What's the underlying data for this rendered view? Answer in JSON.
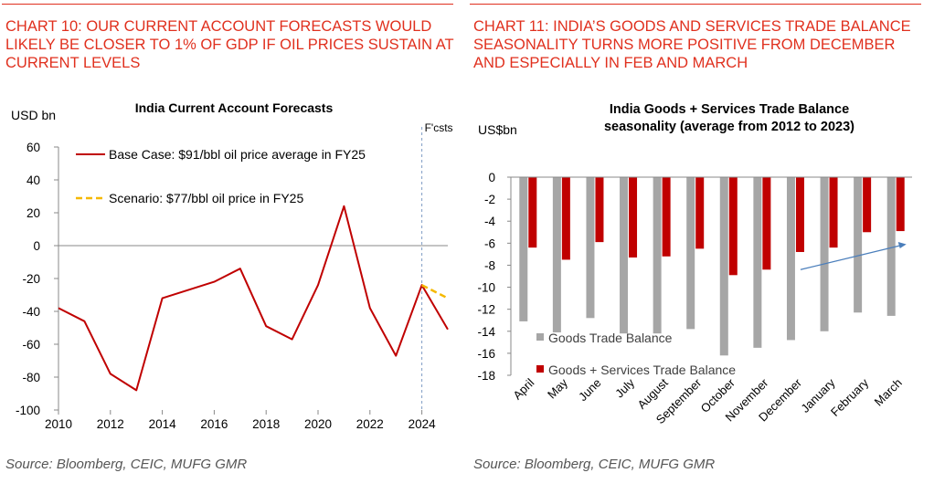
{
  "left": {
    "heading": "CHART 10: OUR CURRENT ACCOUNT FORECASTS WOULD LIKELY BE CLOSER TO 1% OF GDP IF OIL PRICES SUSTAIN AT CURRENT LEVELS",
    "source": "Source: Bloomberg, CEIC, MUFG GMR"
  },
  "right": {
    "heading": "CHART 11: INDIA’S GOODS AND SERVICES TRADE BALANCE SEASONALITY TURNS MORE POSITIVE FROM DECEMBER AND ESPECIALLY IN FEB AND MARCH",
    "source": "Source: Bloomberg, CEIC, MUFG GMR"
  },
  "chart_data": [
    {
      "type": "line",
      "title": "India Current Account Forecasts",
      "ylabel": "USD bn",
      "xlabel": "",
      "ylim": [
        -100,
        60
      ],
      "yticks": [
        60,
        40,
        20,
        0,
        -20,
        -40,
        -60,
        -80,
        -100
      ],
      "xlim": [
        2010,
        2025
      ],
      "xticks": [
        2010,
        2012,
        2014,
        2016,
        2018,
        2020,
        2022,
        2024
      ],
      "forecast_marker": {
        "x": 2024,
        "label": "F'csts"
      },
      "legend_position": "top-left",
      "series": [
        {
          "name": "Base Case: $91/bbl oil price average in FY25",
          "color": "#c00000",
          "style": "solid",
          "x": [
            2010,
            2011,
            2012,
            2013,
            2014,
            2015,
            2016,
            2017,
            2018,
            2019,
            2020,
            2021,
            2022,
            2023,
            2024,
            2025
          ],
          "y": [
            -38,
            -46,
            -78,
            -88,
            -32,
            -27,
            -22,
            -14,
            -49,
            -57,
            -24,
            24,
            -38,
            -67,
            -24,
            -51
          ]
        },
        {
          "name": "Scenario: $77/bbl oil price in FY25",
          "color": "#f5b800",
          "style": "dashed",
          "x": [
            2024,
            2025
          ],
          "y": [
            -24,
            -32
          ]
        }
      ]
    },
    {
      "type": "bar",
      "title": "India Goods + Services Trade Balance seasonality (average from 2012 to 2023)",
      "ylabel": "US$bn",
      "xlabel": "",
      "ylim": [
        -18,
        0
      ],
      "yticks": [
        0,
        -2,
        -4,
        -6,
        -8,
        -10,
        -12,
        -14,
        -16,
        -18
      ],
      "legend_position": "bottom-left",
      "categories": [
        "April",
        "May",
        "June",
        "July",
        "August",
        "September",
        "October",
        "November",
        "December",
        "January",
        "February",
        "March"
      ],
      "series": [
        {
          "name": "Goods Trade Balance",
          "color": "#a6a6a6",
          "values": [
            -13.1,
            -14.1,
            -12.8,
            -14.2,
            -14.2,
            -13.8,
            -16.2,
            -15.5,
            -14.8,
            -14.0,
            -12.3,
            -12.6
          ]
        },
        {
          "name": "Goods + Services Trade Balance",
          "color": "#c00000",
          "values": [
            -6.4,
            -7.5,
            -5.9,
            -7.3,
            -7.2,
            -6.5,
            -8.9,
            -8.4,
            -6.8,
            -6.4,
            -5.0,
            -4.9
          ]
        }
      ],
      "annotation": {
        "type": "arrow",
        "from_category": "December",
        "from_value": -8.4,
        "to_category": "March",
        "to_value": -6.1,
        "color": "#4a7ebb"
      }
    }
  ]
}
